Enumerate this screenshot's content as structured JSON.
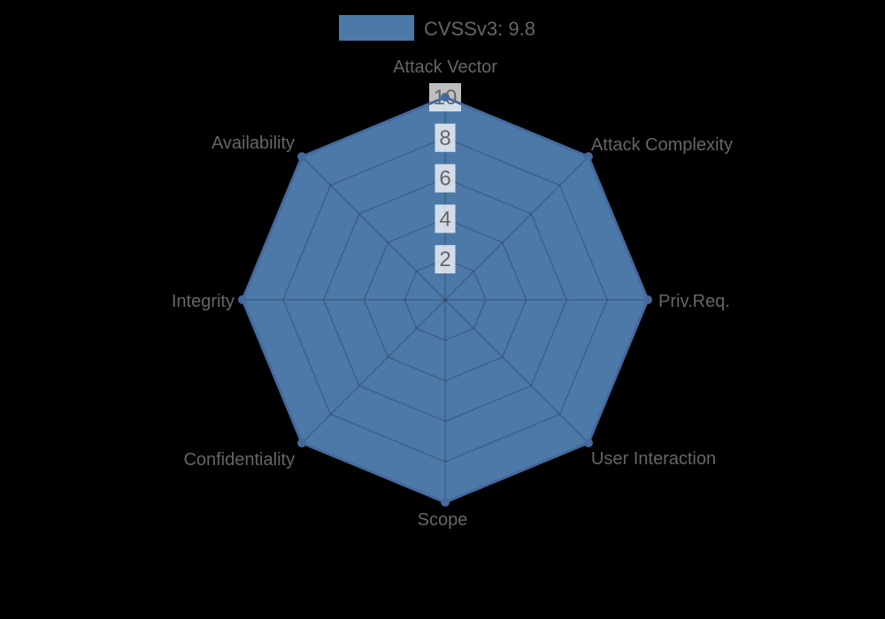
{
  "background": "#000000",
  "chart_data": {
    "type": "radar",
    "title": "",
    "legend": {
      "position": "top",
      "label": "CVSSv3: 9.8"
    },
    "categories": [
      "Attack Vector",
      "Attack Complexity",
      "Priv.Req.",
      "User Interaction",
      "Scope",
      "Confidentiality",
      "Integrity",
      "Availability"
    ],
    "series": [
      {
        "name": "CVSSv3: 9.8",
        "values": [
          10,
          10,
          10,
          10,
          10,
          10,
          10,
          10
        ]
      }
    ],
    "rlim": [
      0,
      10
    ],
    "ticks": [
      2,
      4,
      6,
      8,
      10
    ],
    "grid": true,
    "colors": {
      "fill": "#4d79a8",
      "border": "#44699c",
      "point": "#44699c",
      "grid_line": "rgba(0,0,0,0.2)",
      "tick_backdrop": "rgba(255,255,255,0.75)",
      "text": "#666666"
    }
  }
}
